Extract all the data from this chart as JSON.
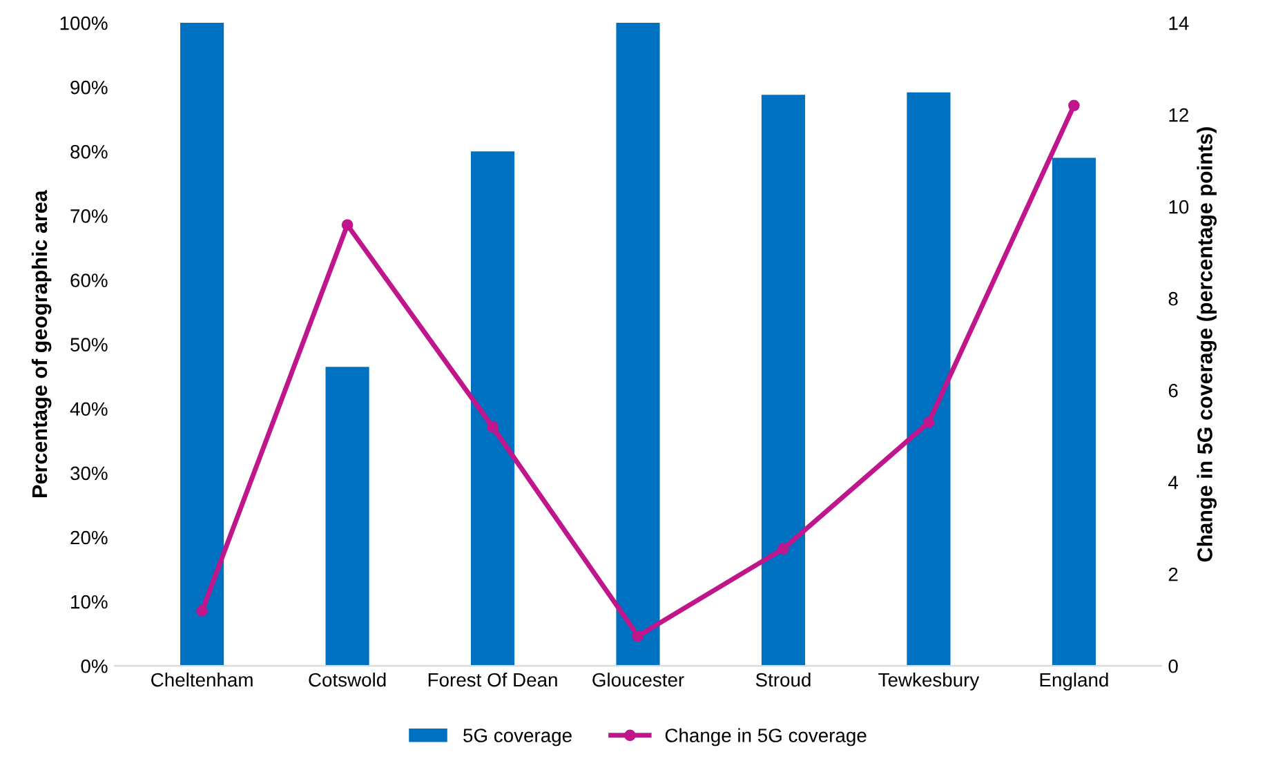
{
  "chart_data": {
    "type": "bar",
    "ylabel": "Percentage of geographic area",
    "y2label": "Change in 5G coverage (percentage points)",
    "categories": [
      "Cheltenham",
      "Cotswold",
      "Forest Of Dean",
      "Gloucester",
      "Stroud",
      "Tewkesbury",
      "England"
    ],
    "series": [
      {
        "name": "5G coverage",
        "color": "#0070c0",
        "values": [
          100,
          46.5,
          80,
          100,
          88.8,
          89.2,
          79
        ]
      },
      {
        "name": "Change in 5G coverage",
        "type": "line",
        "axis": "y2",
        "color": "#c0168c",
        "marker": "circle",
        "values": [
          1.2,
          9.6,
          5.2,
          0.65,
          2.55,
          5.3,
          12.2
        ]
      }
    ],
    "ylim": [
      0,
      100
    ],
    "yticks": [
      {
        "value": 0,
        "label": "0%"
      },
      {
        "value": 10,
        "label": "10%"
      },
      {
        "value": 20,
        "label": "20%"
      },
      {
        "value": 30,
        "label": "30%"
      },
      {
        "value": 40,
        "label": "40%"
      },
      {
        "value": 50,
        "label": "50%"
      },
      {
        "value": 60,
        "label": "60%"
      },
      {
        "value": 70,
        "label": "70%"
      },
      {
        "value": 80,
        "label": "80%"
      },
      {
        "value": 90,
        "label": "90%"
      },
      {
        "value": 100,
        "label": "100%"
      }
    ],
    "y2lim": [
      0,
      14
    ],
    "y2ticks": [
      0,
      2,
      4,
      6,
      8,
      10,
      12,
      14
    ],
    "grid": false,
    "legend": "bottom"
  }
}
